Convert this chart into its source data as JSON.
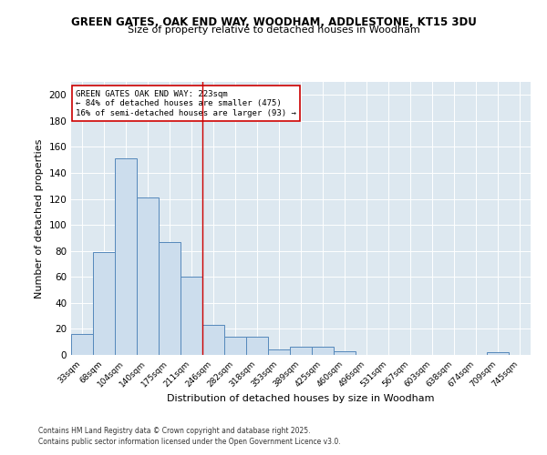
{
  "title1": "GREEN GATES, OAK END WAY, WOODHAM, ADDLESTONE, KT15 3DU",
  "title2": "Size of property relative to detached houses in Woodham",
  "xlabel": "Distribution of detached houses by size in Woodham",
  "ylabel": "Number of detached properties",
  "categories": [
    "33sqm",
    "68sqm",
    "104sqm",
    "140sqm",
    "175sqm",
    "211sqm",
    "246sqm",
    "282sqm",
    "318sqm",
    "353sqm",
    "389sqm",
    "425sqm",
    "460sqm",
    "496sqm",
    "531sqm",
    "567sqm",
    "603sqm",
    "638sqm",
    "674sqm",
    "709sqm",
    "745sqm"
  ],
  "values": [
    16,
    79,
    151,
    121,
    87,
    60,
    23,
    14,
    14,
    4,
    6,
    6,
    3,
    0,
    0,
    0,
    0,
    0,
    0,
    2,
    0
  ],
  "bar_facecolor": "#ccdded",
  "bar_edgecolor": "#5588bb",
  "ref_line_color": "#cc0000",
  "annotation_text": "GREEN GATES OAK END WAY: 223sqm\n← 84% of detached houses are smaller (475)\n16% of semi-detached houses are larger (93) →",
  "annotation_box_color": "#ffffff",
  "annotation_box_edgecolor": "#cc0000",
  "ylim": [
    0,
    210
  ],
  "yticks": [
    0,
    20,
    40,
    60,
    80,
    100,
    120,
    140,
    160,
    180,
    200
  ],
  "background_color": "#dde8f0",
  "footer1": "Contains HM Land Registry data © Crown copyright and database right 2025.",
  "footer2": "Contains public sector information licensed under the Open Government Licence v3.0."
}
